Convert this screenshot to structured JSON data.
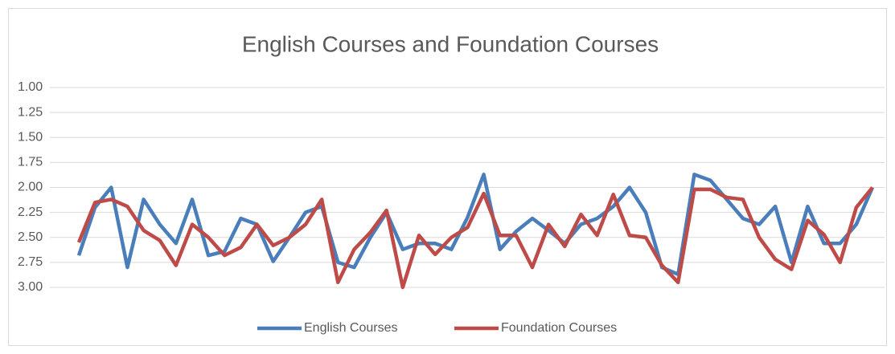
{
  "chart_data": {
    "type": "line",
    "title": "English Courses and Foundation Courses",
    "series": [
      {
        "name": "English Courses",
        "color": "#4a7ebb",
        "values": [
          2.68,
          2.2,
          2.0,
          2.8,
          2.12,
          2.37,
          2.56,
          2.12,
          2.68,
          2.64,
          2.31,
          2.37,
          2.74,
          2.5,
          2.25,
          2.19,
          2.75,
          2.8,
          2.5,
          2.25,
          2.62,
          2.56,
          2.56,
          2.62,
          2.3,
          1.87,
          2.62,
          2.44,
          2.31,
          2.43,
          2.56,
          2.37,
          2.31,
          2.19,
          2.0,
          2.25,
          2.8,
          2.87,
          1.87,
          1.93,
          2.12,
          2.31,
          2.37,
          2.19,
          2.75,
          2.19,
          2.56,
          2.56,
          2.37,
          2.0
        ]
      },
      {
        "name": "Foundation Courses",
        "color": "#be4b48",
        "values": [
          2.55,
          2.15,
          2.12,
          2.19,
          2.43,
          2.53,
          2.78,
          2.37,
          2.5,
          2.68,
          2.6,
          2.37,
          2.58,
          2.5,
          2.37,
          2.12,
          2.95,
          2.62,
          2.45,
          2.23,
          3.0,
          2.48,
          2.67,
          2.5,
          2.4,
          2.06,
          2.48,
          2.48,
          2.8,
          2.37,
          2.59,
          2.27,
          2.48,
          2.07,
          2.48,
          2.5,
          2.78,
          2.95,
          2.02,
          2.02,
          2.1,
          2.12,
          2.5,
          2.72,
          2.82,
          2.33,
          2.47,
          2.75,
          2.2,
          2.0
        ]
      }
    ],
    "ylim": [
      1,
      3
    ],
    "y_inverted": true,
    "yticks": [
      {
        "value": 1,
        "label": "1.00"
      },
      {
        "value": 1.25,
        "label": "1.25"
      },
      {
        "value": 1.5,
        "label": "1.50"
      },
      {
        "value": 1.75,
        "label": "1.75"
      },
      {
        "value": 2,
        "label": "2.00"
      },
      {
        "value": 2.25,
        "label": "2.25"
      },
      {
        "value": 2.5,
        "label": "2.50"
      },
      {
        "value": 2.75,
        "label": "2.75"
      },
      {
        "value": 3,
        "label": "3.00"
      }
    ],
    "grid": true,
    "legend": "bottom"
  }
}
